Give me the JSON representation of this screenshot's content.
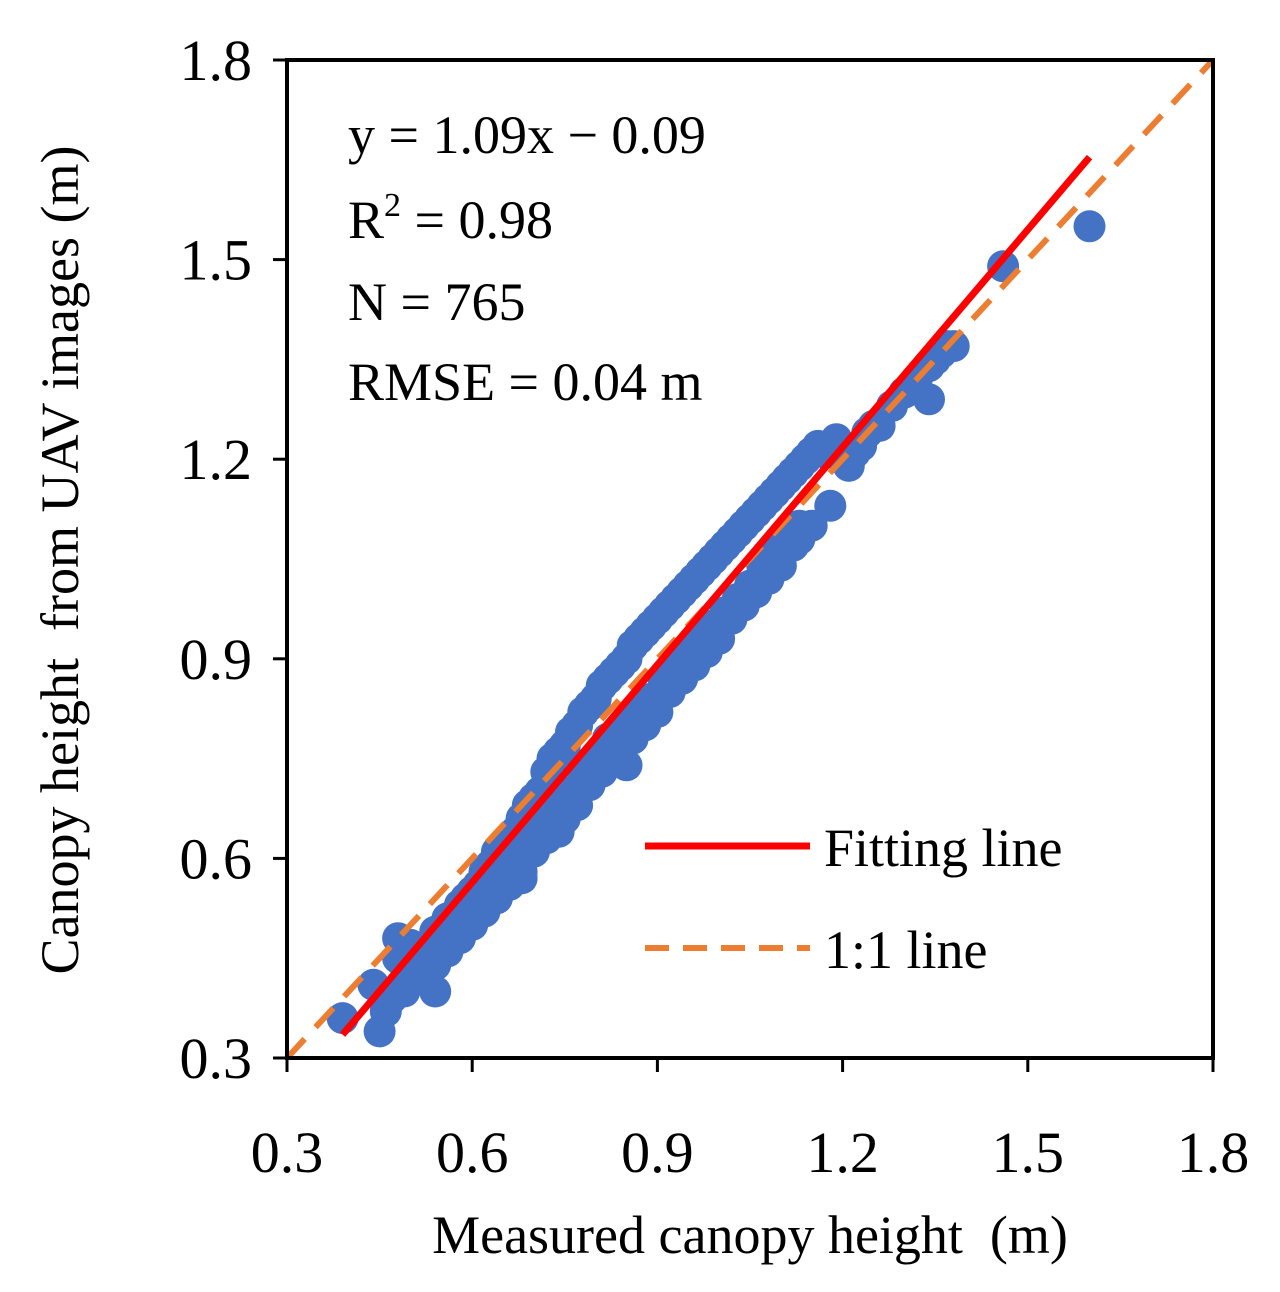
{
  "chart_data": {
    "type": "scatter",
    "title": "",
    "xlabel": "Measured canopy height  (m)",
    "ylabel": "Canopy height  from UAV images (m)",
    "xlim": [
      0.3,
      1.8
    ],
    "ylim": [
      0.3,
      1.8
    ],
    "xticks": [
      "0.3",
      "0.6",
      "0.9",
      "1.2",
      "1.5",
      "1.8"
    ],
    "yticks": [
      "0.3",
      "0.6",
      "0.9",
      "1.2",
      "1.5",
      "1.8"
    ],
    "point_color": "#4472c4",
    "fit_color": "#ff0000",
    "identity_color": "#ed7d31",
    "stats": {
      "equation": "y = 1.09x − 0.09",
      "r2_prefix": "R",
      "r2_sup": "2",
      "r2_suffix": " = 0.98",
      "n": "N = 765",
      "rmse": "RMSE = 0.04 m"
    },
    "fitting_line": {
      "slope": 1.09,
      "intercept": -0.09,
      "x_range": [
        0.39,
        1.6
      ]
    },
    "identity_line": {
      "x_range": [
        0.3,
        1.8
      ]
    },
    "legend": {
      "position": "lower-right",
      "entries": [
        {
          "label": "Fitting line",
          "style": "solid",
          "color": "#ff0000"
        },
        {
          "label": "1:1 line",
          "style": "dashed",
          "color": "#ed7d31"
        }
      ]
    },
    "points_x": [
      0.39,
      0.45,
      0.44,
      0.47,
      0.48,
      0.49,
      0.5,
      0.52,
      0.54,
      0.55,
      0.56,
      0.57,
      0.58,
      0.59,
      0.6,
      0.61,
      0.62,
      0.63,
      0.64,
      0.65,
      0.66,
      0.67,
      0.68,
      0.69,
      0.7,
      0.71,
      0.72,
      0.73,
      0.74,
      0.75,
      0.76,
      0.77,
      0.78,
      0.79,
      0.8,
      0.81,
      0.82,
      0.83,
      0.84,
      0.85,
      0.86,
      0.87,
      0.88,
      0.89,
      0.9,
      0.91,
      0.92,
      0.93,
      0.94,
      0.95,
      0.96,
      0.97,
      0.98,
      0.99,
      1.0,
      1.01,
      1.02,
      1.03,
      1.04,
      1.05,
      1.06,
      1.07,
      1.08,
      1.09,
      1.1,
      1.11,
      1.12,
      1.13,
      1.14,
      1.15,
      1.16,
      1.17,
      1.18,
      1.19,
      1.2,
      1.21,
      1.22,
      1.23,
      1.24,
      1.25,
      1.28,
      1.3,
      1.32,
      1.34,
      1.35,
      1.36,
      1.37,
      1.38,
      1.46,
      1.6,
      0.5,
      0.52,
      0.53,
      0.55,
      0.57,
      0.59,
      0.61,
      0.63,
      0.65,
      0.67,
      0.69,
      0.71,
      0.73,
      0.74,
      0.76,
      0.78,
      0.8,
      0.82,
      0.84,
      0.85,
      0.87,
      0.89,
      0.91,
      0.93,
      0.95,
      0.97,
      0.99,
      1.01,
      1.03,
      1.05,
      1.07,
      1.09,
      1.11,
      1.13,
      0.46,
      0.49,
      0.51,
      0.54,
      0.56,
      0.58,
      0.6,
      0.62,
      0.64,
      0.66,
      0.68,
      0.7,
      0.72,
      0.75,
      0.77,
      0.79,
      0.81,
      0.83,
      0.86,
      0.88,
      0.9,
      0.92,
      0.94,
      0.96,
      0.98,
      1.0,
      1.02,
      1.04,
      1.06,
      1.08,
      1.1,
      1.12,
      1.15,
      1.18,
      0.85,
      0.74,
      0.68,
      0.54,
      0.48,
      1.34,
      1.13,
      1.05,
      1.2,
      1.26,
      0.62,
      0.66,
      0.7,
      0.78,
      0.82,
      0.92,
      0.96,
      1.0,
      1.04,
      1.08
    ],
    "points_y": [
      0.36,
      0.34,
      0.41,
      0.39,
      0.45,
      0.44,
      0.47,
      0.46,
      0.49,
      0.48,
      0.51,
      0.5,
      0.53,
      0.54,
      0.55,
      0.56,
      0.58,
      0.59,
      0.61,
      0.6,
      0.63,
      0.64,
      0.66,
      0.68,
      0.69,
      0.7,
      0.73,
      0.75,
      0.76,
      0.77,
      0.79,
      0.8,
      0.82,
      0.83,
      0.84,
      0.86,
      0.87,
      0.88,
      0.89,
      0.9,
      0.92,
      0.93,
      0.94,
      0.95,
      0.96,
      0.97,
      0.98,
      0.99,
      1.0,
      1.01,
      1.02,
      1.03,
      1.04,
      1.05,
      1.06,
      1.07,
      1.08,
      1.09,
      1.1,
      1.11,
      1.12,
      1.13,
      1.14,
      1.15,
      1.16,
      1.17,
      1.18,
      1.19,
      1.2,
      1.21,
      1.22,
      1.21,
      1.22,
      1.23,
      1.2,
      1.19,
      1.21,
      1.22,
      1.24,
      1.25,
      1.28,
      1.3,
      1.32,
      1.34,
      1.35,
      1.36,
      1.37,
      1.37,
      1.49,
      1.55,
      0.42,
      0.44,
      0.45,
      0.47,
      0.49,
      0.51,
      0.53,
      0.55,
      0.57,
      0.59,
      0.61,
      0.63,
      0.66,
      0.68,
      0.7,
      0.72,
      0.75,
      0.77,
      0.79,
      0.8,
      0.82,
      0.84,
      0.87,
      0.89,
      0.91,
      0.93,
      0.95,
      0.97,
      0.99,
      1.01,
      1.04,
      1.06,
      1.08,
      1.1,
      0.37,
      0.4,
      0.42,
      0.44,
      0.46,
      0.48,
      0.5,
      0.52,
      0.54,
      0.56,
      0.58,
      0.61,
      0.63,
      0.66,
      0.68,
      0.71,
      0.73,
      0.75,
      0.78,
      0.8,
      0.82,
      0.85,
      0.87,
      0.89,
      0.91,
      0.93,
      0.96,
      0.98,
      1.0,
      1.02,
      1.04,
      1.07,
      1.1,
      1.13,
      0.74,
      0.64,
      0.57,
      0.4,
      0.48,
      1.29,
      1.08,
      1.0,
      1.2,
      1.25,
      0.54,
      0.58,
      0.62,
      0.74,
      0.78,
      0.87,
      0.91,
      0.95,
      0.99,
      1.03
    ]
  }
}
